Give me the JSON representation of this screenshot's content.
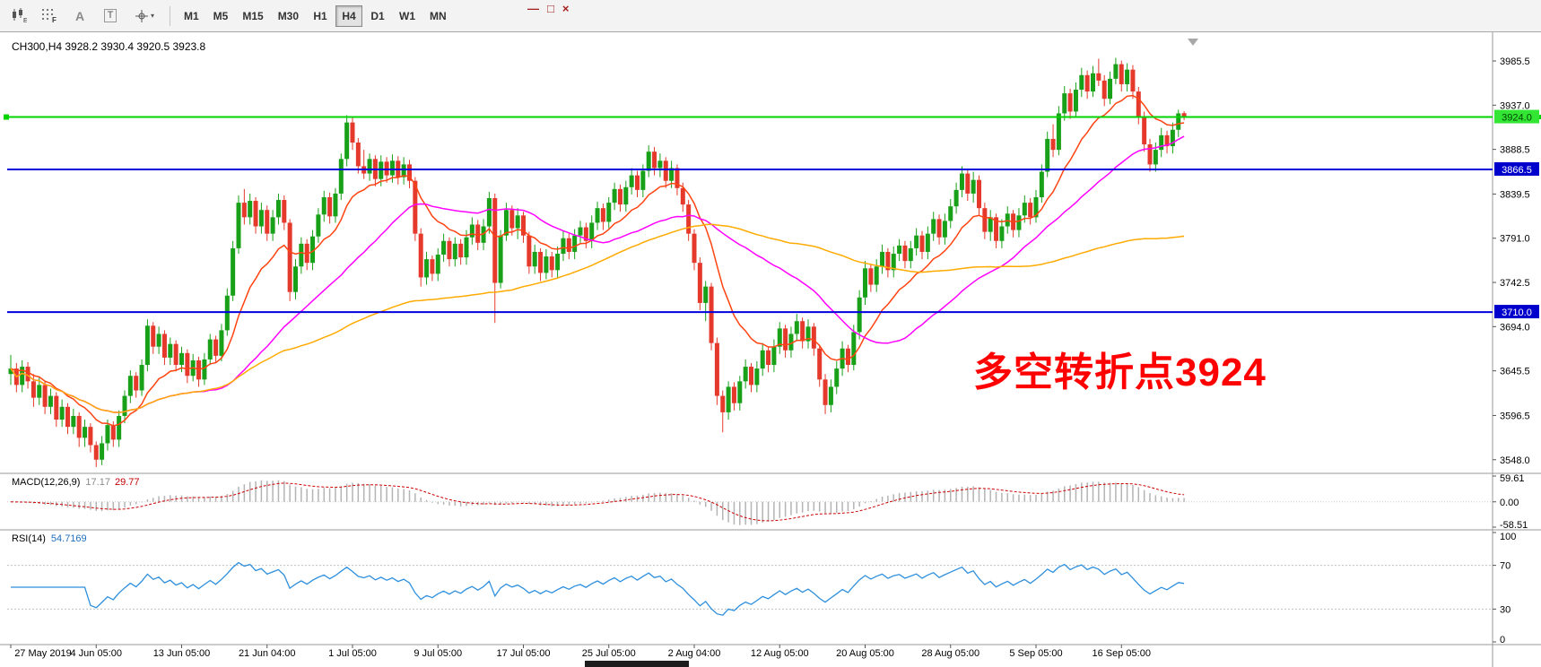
{
  "toolbar": {
    "timeframes": [
      "M1",
      "M5",
      "M15",
      "M30",
      "H1",
      "H4",
      "D1",
      "W1",
      "MN"
    ],
    "active_timeframe": "H4",
    "text_label_tool": "A",
    "text_tool": "T"
  },
  "window_controls": {
    "minimize": "—",
    "restore": "□",
    "close": "×"
  },
  "chart": {
    "symbol_title": "CH300,H4  3928.2 3930.4 3920.5 3923.8",
    "annotation_text": "多空转折点3924",
    "macd_label": "MACD(12,26,9)",
    "macd_value1": "17.17",
    "macd_value2": "29.77",
    "rsi_label": "RSI(14)",
    "rsi_value": "54.7169"
  },
  "chart_data": {
    "type": "candlestick",
    "symbol": "CH300",
    "timeframe": "H4",
    "colors": {
      "up": "#18a018",
      "down": "#e5392c",
      "background": "#ffffff",
      "axis_text": "#000000"
    },
    "y_axis": {
      "min": 3533,
      "max": 4017,
      "ticks": [
        3985.5,
        3937.0,
        3888.5,
        3839.5,
        3791.0,
        3742.5,
        3694.0,
        3645.5,
        3596.5,
        3548.0
      ]
    },
    "hlines": [
      {
        "value": 3924.0,
        "color": "#00d400",
        "width": 2,
        "badge": "3924.0",
        "badge_bg": "#33e633",
        "badge_fg": "#004400",
        "left_marker": true
      },
      {
        "value": 3866.5,
        "color": "#0000dd",
        "width": 2,
        "badge": "3866.5",
        "badge_bg": "#0000cc",
        "badge_fg": "#ffffff",
        "left_marker": false
      },
      {
        "value": 3710.0,
        "color": "#0000dd",
        "width": 2,
        "badge": "3710.0",
        "badge_bg": "#0000cc",
        "badge_fg": "#ffffff",
        "left_marker": false
      }
    ],
    "ma_lines": [
      {
        "period": 13,
        "method": "ema",
        "color": "#ff4411"
      },
      {
        "period": 34,
        "method": "sma",
        "color": "#ff00ff"
      },
      {
        "period": 89,
        "method": "sma",
        "color": "#ffaa00"
      }
    ],
    "x_labels": [
      {
        "i": 0,
        "label": "27 May 2019"
      },
      {
        "i": 15,
        "label": "4 Jun 05:00"
      },
      {
        "i": 30,
        "label": "13 Jun 05:00"
      },
      {
        "i": 45,
        "label": "21 Jun 04:00"
      },
      {
        "i": 60,
        "label": "1 Jul 05:00"
      },
      {
        "i": 75,
        "label": "9 Jul 05:00"
      },
      {
        "i": 90,
        "label": "17 Jul 05:00"
      },
      {
        "i": 105,
        "label": "25 Jul 05:00"
      },
      {
        "i": 120,
        "label": "2 Aug 04:00"
      },
      {
        "i": 135,
        "label": "12 Aug 05:00"
      },
      {
        "i": 150,
        "label": "20 Aug 05:00"
      },
      {
        "i": 165,
        "label": "28 Aug 05:00"
      },
      {
        "i": 180,
        "label": "5 Sep 05:00"
      },
      {
        "i": 195,
        "label": "16 Sep 05:00"
      }
    ],
    "indicators": {
      "macd": {
        "label": "MACD(12,26,9)",
        "fast": 12,
        "slow": 26,
        "signal": 9,
        "current_main": 17.17,
        "current_signal": 29.77,
        "hist_color": "#b4b4b4",
        "signal_color": "#cc0000",
        "axis_labels": [
          "59.61",
          "0.00",
          "-58.51"
        ],
        "axis_values": [
          59.61,
          0,
          -58.51
        ]
      },
      "rsi": {
        "label": "RSI(14)",
        "period": 14,
        "current": 54.7169,
        "color": "#2d8fdd",
        "levels": [
          100,
          70,
          30,
          0
        ],
        "dashed_levels": [
          70,
          30
        ]
      }
    },
    "candles": [
      [
        3642,
        3663,
        3630,
        3648
      ],
      [
        3648,
        3654,
        3622,
        3630
      ],
      [
        3630,
        3657,
        3622,
        3650
      ],
      [
        3650,
        3655,
        3626,
        3634
      ],
      [
        3634,
        3642,
        3606,
        3616
      ],
      [
        3616,
        3638,
        3608,
        3630
      ],
      [
        3630,
        3634,
        3598,
        3606
      ],
      [
        3606,
        3626,
        3598,
        3618
      ],
      [
        3618,
        3622,
        3584,
        3592
      ],
      [
        3592,
        3614,
        3584,
        3606
      ],
      [
        3606,
        3610,
        3576,
        3584
      ],
      [
        3584,
        3604,
        3576,
        3596
      ],
      [
        3596,
        3600,
        3562,
        3572
      ],
      [
        3572,
        3592,
        3562,
        3584
      ],
      [
        3584,
        3588,
        3556,
        3564
      ],
      [
        3564,
        3568,
        3540,
        3548
      ],
      [
        3548,
        3574,
        3542,
        3566
      ],
      [
        3566,
        3592,
        3558,
        3586
      ],
      [
        3586,
        3590,
        3562,
        3570
      ],
      [
        3570,
        3602,
        3562,
        3596
      ],
      [
        3596,
        3624,
        3588,
        3618
      ],
      [
        3618,
        3646,
        3610,
        3640
      ],
      [
        3640,
        3644,
        3616,
        3624
      ],
      [
        3624,
        3658,
        3618,
        3652
      ],
      [
        3652,
        3702,
        3645,
        3695
      ],
      [
        3695,
        3699,
        3664,
        3672
      ],
      [
        3672,
        3694,
        3664,
        3686
      ],
      [
        3686,
        3690,
        3652,
        3660
      ],
      [
        3660,
        3682,
        3652,
        3675
      ],
      [
        3675,
        3679,
        3645,
        3652
      ],
      [
        3652,
        3672,
        3644,
        3665
      ],
      [
        3665,
        3669,
        3632,
        3640
      ],
      [
        3640,
        3664,
        3634,
        3657
      ],
      [
        3657,
        3661,
        3628,
        3636
      ],
      [
        3636,
        3665,
        3630,
        3658
      ],
      [
        3658,
        3686,
        3652,
        3680
      ],
      [
        3680,
        3684,
        3655,
        3662
      ],
      [
        3662,
        3697,
        3656,
        3690
      ],
      [
        3690,
        3736,
        3684,
        3728
      ],
      [
        3728,
        3788,
        3722,
        3780
      ],
      [
        3780,
        3838,
        3774,
        3830
      ],
      [
        3830,
        3845,
        3806,
        3814
      ],
      [
        3814,
        3840,
        3806,
        3832
      ],
      [
        3832,
        3836,
        3796,
        3804
      ],
      [
        3804,
        3830,
        3796,
        3822
      ],
      [
        3822,
        3827,
        3788,
        3796
      ],
      [
        3796,
        3822,
        3788,
        3814
      ],
      [
        3814,
        3840,
        3806,
        3833
      ],
      [
        3833,
        3838,
        3800,
        3808
      ],
      [
        3808,
        3812,
        3722,
        3732
      ],
      [
        3732,
        3768,
        3724,
        3760
      ],
      [
        3760,
        3792,
        3752,
        3785
      ],
      [
        3785,
        3790,
        3756,
        3764
      ],
      [
        3764,
        3800,
        3756,
        3793
      ],
      [
        3793,
        3824,
        3786,
        3817
      ],
      [
        3817,
        3843,
        3809,
        3836
      ],
      [
        3836,
        3841,
        3807,
        3815
      ],
      [
        3815,
        3846,
        3808,
        3840
      ],
      [
        3840,
        3884,
        3833,
        3878
      ],
      [
        3878,
        3926,
        3870,
        3918
      ],
      [
        3918,
        3924,
        3888,
        3896
      ],
      [
        3896,
        3901,
        3862,
        3870
      ],
      [
        3870,
        3888,
        3856,
        3862
      ],
      [
        3862,
        3884,
        3854,
        3878
      ],
      [
        3878,
        3882,
        3848,
        3856
      ],
      [
        3856,
        3882,
        3848,
        3875
      ],
      [
        3875,
        3880,
        3852,
        3860
      ],
      [
        3860,
        3883,
        3852,
        3876
      ],
      [
        3876,
        3881,
        3850,
        3858
      ],
      [
        3858,
        3880,
        3850,
        3872
      ],
      [
        3872,
        3877,
        3846,
        3854
      ],
      [
        3854,
        3858,
        3788,
        3796
      ],
      [
        3796,
        3802,
        3738,
        3748
      ],
      [
        3748,
        3776,
        3740,
        3768
      ],
      [
        3768,
        3772,
        3744,
        3752
      ],
      [
        3752,
        3780,
        3744,
        3773
      ],
      [
        3773,
        3796,
        3765,
        3788
      ],
      [
        3788,
        3792,
        3760,
        3768
      ],
      [
        3768,
        3792,
        3760,
        3785
      ],
      [
        3785,
        3790,
        3762,
        3770
      ],
      [
        3770,
        3800,
        3762,
        3792
      ],
      [
        3792,
        3814,
        3784,
        3806
      ],
      [
        3806,
        3811,
        3778,
        3786
      ],
      [
        3786,
        3812,
        3778,
        3804
      ],
      [
        3804,
        3842,
        3796,
        3835
      ],
      [
        3835,
        3840,
        3698,
        3742
      ],
      [
        3742,
        3800,
        3736,
        3794
      ],
      [
        3794,
        3830,
        3788,
        3822
      ],
      [
        3822,
        3827,
        3794,
        3802
      ],
      [
        3802,
        3824,
        3790,
        3816
      ],
      [
        3816,
        3820,
        3786,
        3794
      ],
      [
        3794,
        3798,
        3752,
        3760
      ],
      [
        3760,
        3784,
        3752,
        3776
      ],
      [
        3776,
        3780,
        3744,
        3753
      ],
      [
        3753,
        3779,
        3746,
        3771
      ],
      [
        3771,
        3776,
        3748,
        3756
      ],
      [
        3756,
        3782,
        3748,
        3774
      ],
      [
        3774,
        3799,
        3766,
        3791
      ],
      [
        3791,
        3796,
        3768,
        3776
      ],
      [
        3776,
        3801,
        3768,
        3794
      ],
      [
        3794,
        3810,
        3786,
        3803
      ],
      [
        3803,
        3808,
        3780,
        3788
      ],
      [
        3788,
        3816,
        3780,
        3808
      ],
      [
        3808,
        3831,
        3800,
        3824
      ],
      [
        3824,
        3829,
        3800,
        3809
      ],
      [
        3809,
        3836,
        3802,
        3830
      ],
      [
        3830,
        3852,
        3822,
        3845
      ],
      [
        3845,
        3850,
        3820,
        3828
      ],
      [
        3828,
        3854,
        3820,
        3847
      ],
      [
        3847,
        3868,
        3839,
        3860
      ],
      [
        3860,
        3865,
        3836,
        3844
      ],
      [
        3844,
        3872,
        3836,
        3865
      ],
      [
        3865,
        3893,
        3858,
        3886
      ],
      [
        3886,
        3891,
        3860,
        3868
      ],
      [
        3868,
        3884,
        3858,
        3876
      ],
      [
        3876,
        3880,
        3846,
        3854
      ],
      [
        3854,
        3876,
        3846,
        3868
      ],
      [
        3868,
        3872,
        3838,
        3846
      ],
      [
        3846,
        3852,
        3820,
        3828
      ],
      [
        3828,
        3833,
        3788,
        3796
      ],
      [
        3796,
        3801,
        3756,
        3764
      ],
      [
        3764,
        3770,
        3712,
        3720
      ],
      [
        3720,
        3744,
        3700,
        3738
      ],
      [
        3738,
        3742,
        3668,
        3676
      ],
      [
        3676,
        3682,
        3608,
        3618
      ],
      [
        3618,
        3624,
        3578,
        3600
      ],
      [
        3600,
        3634,
        3592,
        3628
      ],
      [
        3628,
        3633,
        3602,
        3610
      ],
      [
        3610,
        3640,
        3602,
        3634
      ],
      [
        3634,
        3658,
        3626,
        3650
      ],
      [
        3650,
        3654,
        3622,
        3630
      ],
      [
        3630,
        3656,
        3622,
        3648
      ],
      [
        3648,
        3676,
        3640,
        3668
      ],
      [
        3668,
        3672,
        3644,
        3652
      ],
      [
        3652,
        3680,
        3644,
        3672
      ],
      [
        3672,
        3699,
        3664,
        3692
      ],
      [
        3692,
        3696,
        3660,
        3668
      ],
      [
        3668,
        3694,
        3660,
        3686
      ],
      [
        3686,
        3708,
        3678,
        3700
      ],
      [
        3700,
        3704,
        3670,
        3678
      ],
      [
        3678,
        3702,
        3670,
        3694
      ],
      [
        3694,
        3698,
        3662,
        3670
      ],
      [
        3670,
        3674,
        3628,
        3636
      ],
      [
        3636,
        3642,
        3598,
        3608
      ],
      [
        3608,
        3636,
        3600,
        3628
      ],
      [
        3628,
        3656,
        3620,
        3648
      ],
      [
        3648,
        3678,
        3640,
        3670
      ],
      [
        3670,
        3674,
        3644,
        3652
      ],
      [
        3652,
        3696,
        3646,
        3688
      ],
      [
        3688,
        3734,
        3680,
        3726
      ],
      [
        3726,
        3766,
        3718,
        3758
      ],
      [
        3758,
        3762,
        3732,
        3740
      ],
      [
        3740,
        3768,
        3732,
        3760
      ],
      [
        3760,
        3784,
        3752,
        3776
      ],
      [
        3776,
        3780,
        3748,
        3756
      ],
      [
        3756,
        3782,
        3748,
        3774
      ],
      [
        3774,
        3790,
        3766,
        3783
      ],
      [
        3783,
        3788,
        3758,
        3766
      ],
      [
        3766,
        3788,
        3758,
        3780
      ],
      [
        3780,
        3802,
        3772,
        3794
      ],
      [
        3794,
        3799,
        3768,
        3776
      ],
      [
        3776,
        3804,
        3768,
        3796
      ],
      [
        3796,
        3820,
        3788,
        3812
      ],
      [
        3812,
        3817,
        3784,
        3792
      ],
      [
        3792,
        3818,
        3784,
        3810
      ],
      [
        3810,
        3834,
        3802,
        3826
      ],
      [
        3826,
        3852,
        3818,
        3844
      ],
      [
        3844,
        3870,
        3836,
        3862
      ],
      [
        3862,
        3867,
        3832,
        3840
      ],
      [
        3840,
        3864,
        3830,
        3855
      ],
      [
        3855,
        3860,
        3816,
        3824
      ],
      [
        3824,
        3830,
        3790,
        3798
      ],
      [
        3798,
        3822,
        3788,
        3814
      ],
      [
        3814,
        3818,
        3780,
        3788
      ],
      [
        3788,
        3812,
        3780,
        3804
      ],
      [
        3804,
        3826,
        3796,
        3818
      ],
      [
        3818,
        3822,
        3792,
        3800
      ],
      [
        3800,
        3824,
        3792,
        3816
      ],
      [
        3816,
        3838,
        3808,
        3830
      ],
      [
        3830,
        3835,
        3806,
        3814
      ],
      [
        3814,
        3844,
        3808,
        3836
      ],
      [
        3836,
        3872,
        3830,
        3864
      ],
      [
        3864,
        3908,
        3858,
        3900
      ],
      [
        3900,
        3916,
        3880,
        3888
      ],
      [
        3888,
        3936,
        3882,
        3928
      ],
      [
        3928,
        3958,
        3920,
        3950
      ],
      [
        3950,
        3955,
        3922,
        3930
      ],
      [
        3930,
        3962,
        3924,
        3954
      ],
      [
        3954,
        3978,
        3946,
        3970
      ],
      [
        3970,
        3975,
        3944,
        3952
      ],
      [
        3952,
        3980,
        3946,
        3972
      ],
      [
        3972,
        3988,
        3958,
        3964
      ],
      [
        3964,
        3970,
        3936,
        3944
      ],
      [
        3944,
        3974,
        3938,
        3966
      ],
      [
        3966,
        3989,
        3960,
        3982
      ],
      [
        3982,
        3986,
        3952,
        3960
      ],
      [
        3960,
        3983,
        3952,
        3976
      ],
      [
        3976,
        3981,
        3944,
        3952
      ],
      [
        3952,
        3957,
        3916,
        3924
      ],
      [
        3924,
        3930,
        3886,
        3894
      ],
      [
        3894,
        3900,
        3864,
        3872
      ],
      [
        3872,
        3896,
        3864,
        3888
      ],
      [
        3888,
        3912,
        3880,
        3904
      ],
      [
        3904,
        3909,
        3884,
        3892
      ],
      [
        3892,
        3918,
        3884,
        3910
      ],
      [
        3910,
        3932,
        3902,
        3928
      ],
      [
        3928.2,
        3930.4,
        3920.5,
        3923.8
      ]
    ]
  }
}
